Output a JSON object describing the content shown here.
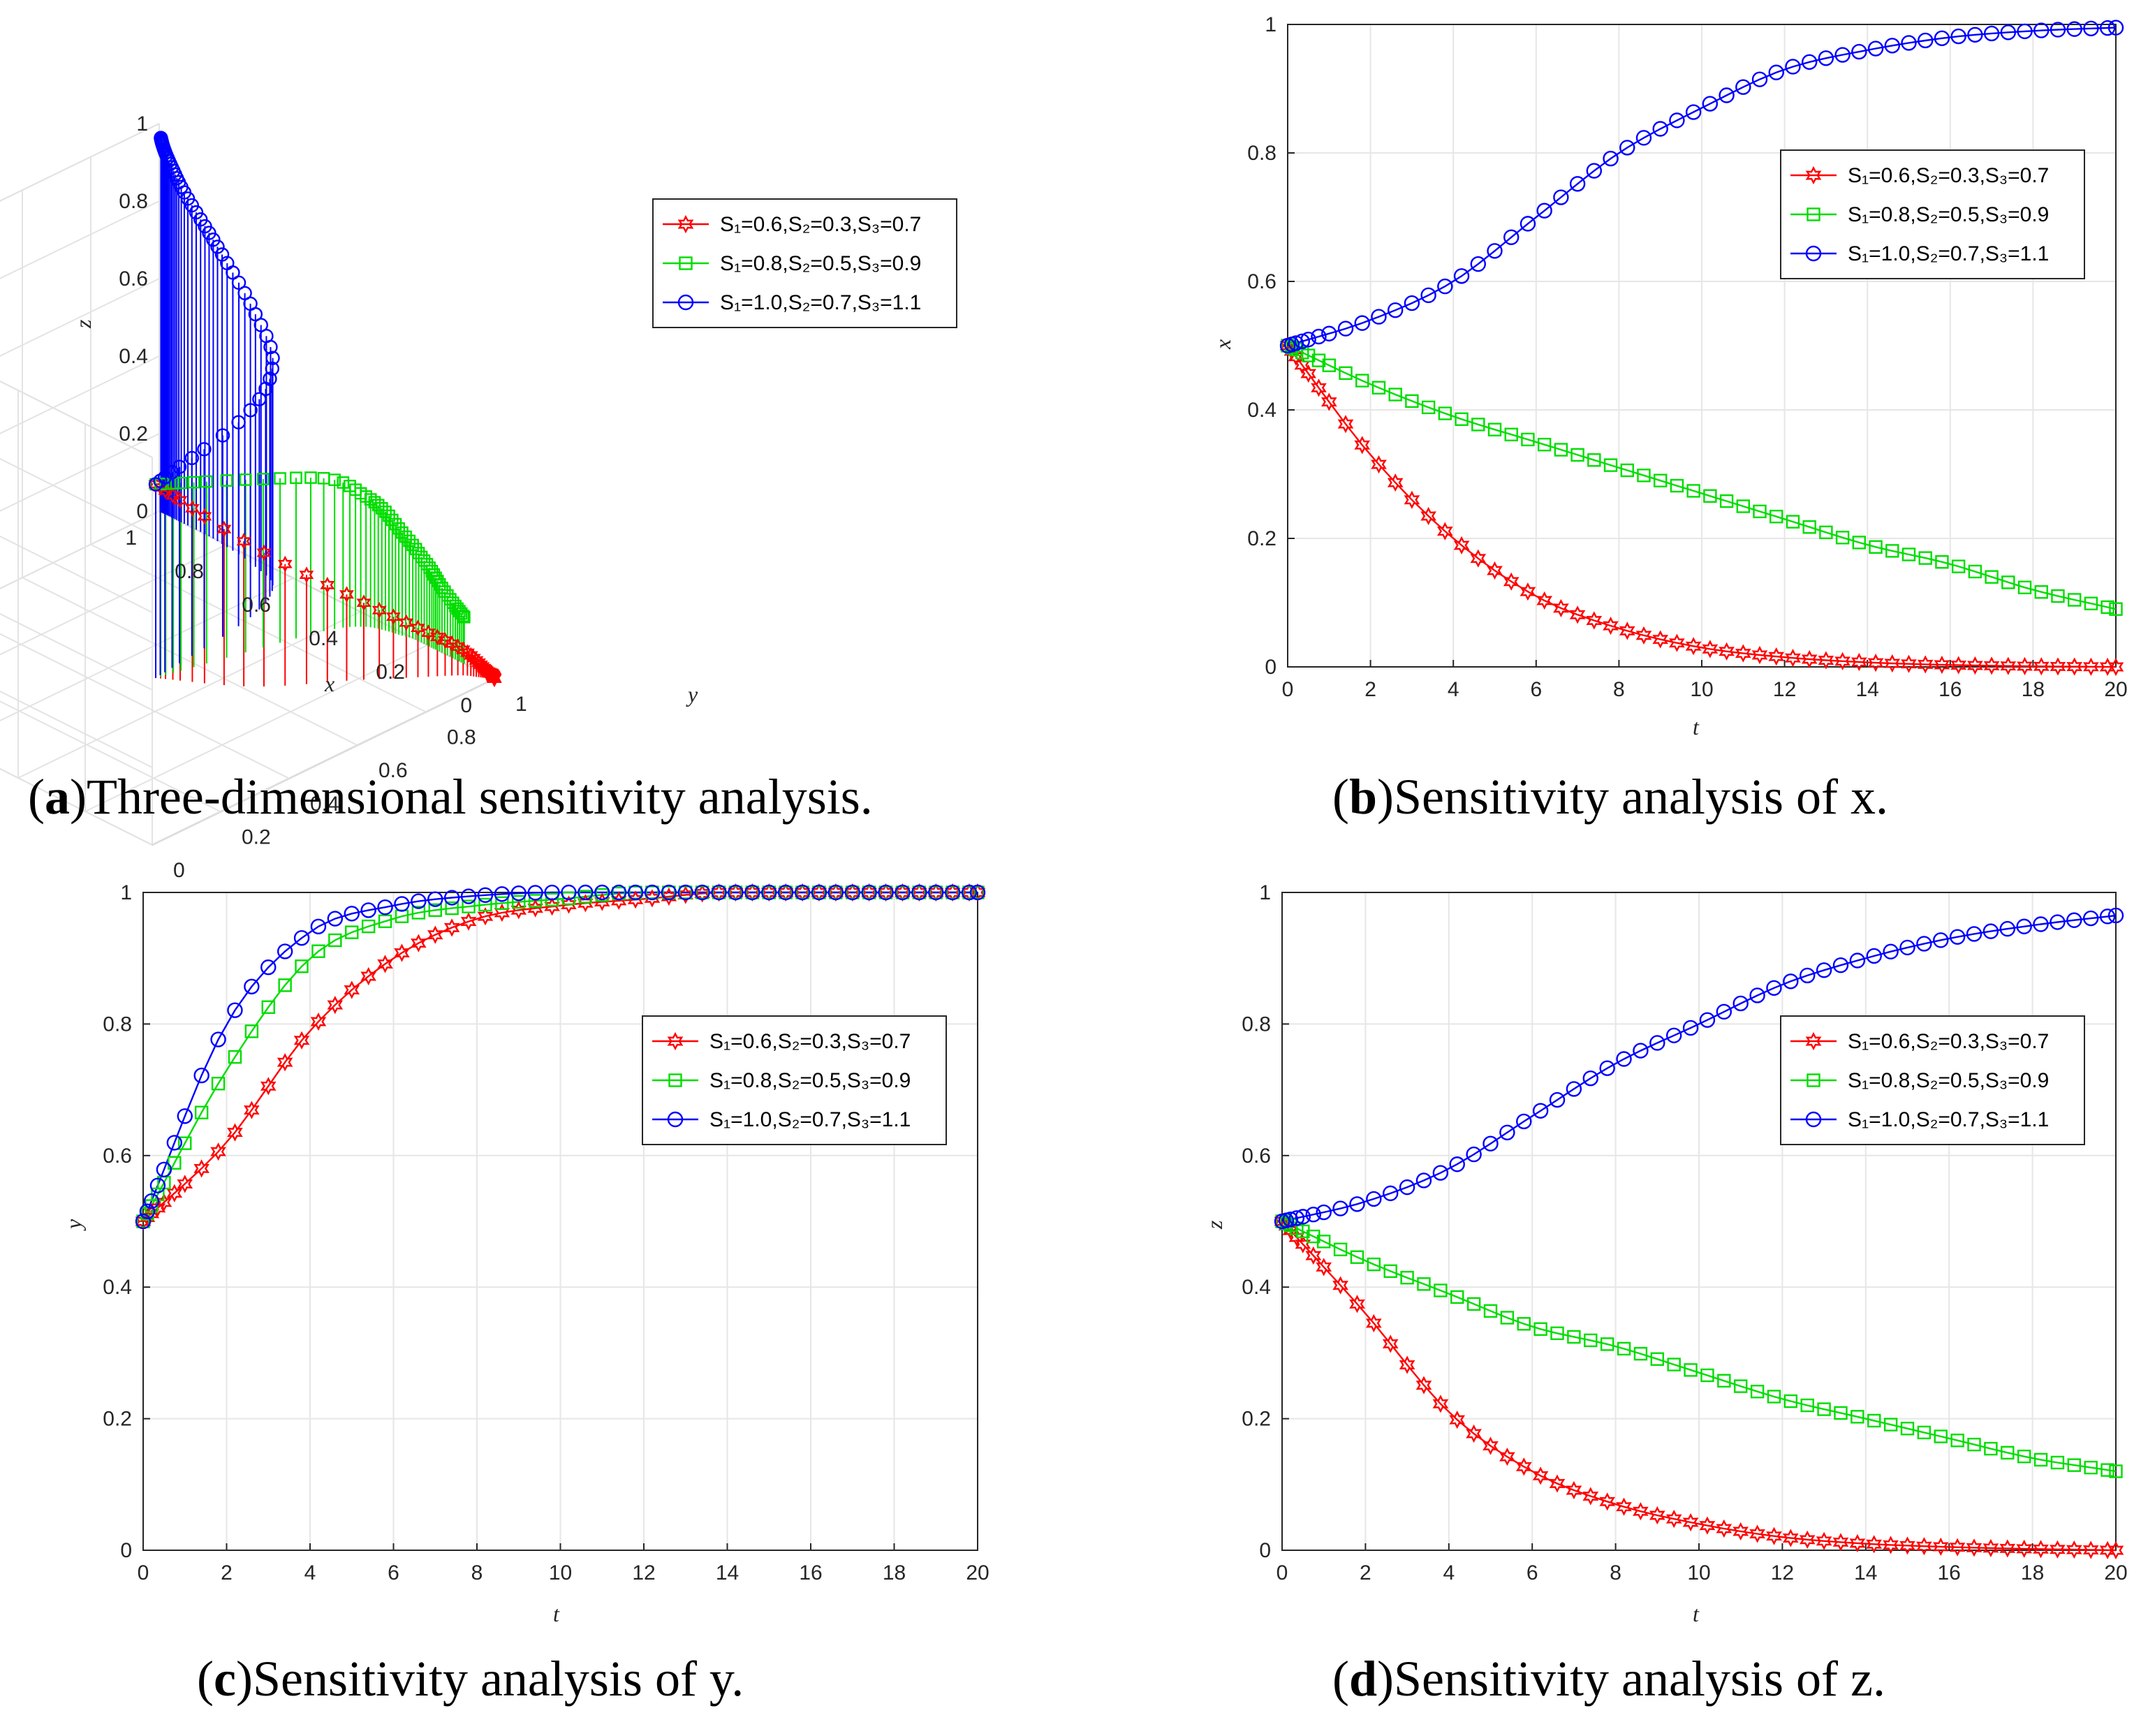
{
  "legend": [
    {
      "key": "s1",
      "label": "S₁=0.6,S₂=0.3,S₃=0.7",
      "color": "#ff0000",
      "marker": "hexagram"
    },
    {
      "key": "s2",
      "label": "S₁=0.8,S₂=0.5,S₃=0.9",
      "color": "#00dd00",
      "marker": "square"
    },
    {
      "key": "s3",
      "label": "S₁=1.0,S₂=0.7,S₃=1.1",
      "color": "#0000ff",
      "marker": "circle"
    }
  ],
  "chart_data": [
    {
      "id": "a",
      "type": "stem3",
      "caption_letter": "a",
      "caption_text": "Three-dimensional sensitivity analysis.",
      "xlabel": "x",
      "ylabel": "y",
      "zlabel": "z",
      "xlim": [
        0,
        1
      ],
      "ylim": [
        0,
        1
      ],
      "zlim": [
        0,
        1
      ],
      "x_ticks": [
        "0",
        "0.2",
        "0.4",
        "0.6",
        "0.8",
        "1"
      ],
      "y_ticks": [
        "0",
        "0.2",
        "0.4",
        "0.6",
        "0.8",
        "1"
      ],
      "z_ticks": [
        "0",
        "0.2",
        "0.4",
        "0.6",
        "0.8",
        "1"
      ],
      "trajectory_source": "x(t), y(t), z(t) from panels b, c, d, t = 0 to 20"
    },
    {
      "id": "b",
      "type": "line",
      "caption_letter": "b",
      "caption_text": "Sensitivity analysis of x.",
      "xlabel": "t",
      "ylabel": "x",
      "xlim": [
        0,
        20
      ],
      "ylim": [
        0,
        1
      ],
      "x_ticks": [
        "0",
        "2",
        "4",
        "6",
        "8",
        "10",
        "12",
        "14",
        "16",
        "18",
        "20"
      ],
      "y_ticks": [
        "0",
        "0.2",
        "0.4",
        "0.6",
        "0.8",
        "1"
      ],
      "legend_position": "upper-right",
      "x": [
        0,
        2,
        4,
        6,
        8,
        10,
        12,
        14,
        16,
        18,
        20
      ],
      "series": [
        {
          "name": "S₁=0.6,S₂=0.3,S₃=0.7",
          "values": [
            0.5,
            0.33,
            0.2,
            0.11,
            0.06,
            0.03,
            0.015,
            0.007,
            0.003,
            0.001,
            0.0
          ]
        },
        {
          "name": "S₁=0.8,S₂=0.5,S₃=0.9",
          "values": [
            0.5,
            0.44,
            0.39,
            0.35,
            0.31,
            0.27,
            0.23,
            0.19,
            0.16,
            0.12,
            0.09
          ]
        },
        {
          "name": "S₁=1.0,S₂=0.7,S₃=1.1",
          "values": [
            0.5,
            0.54,
            0.6,
            0.7,
            0.8,
            0.87,
            0.93,
            0.96,
            0.98,
            0.99,
            0.995
          ]
        }
      ]
    },
    {
      "id": "c",
      "type": "line",
      "caption_letter": "c",
      "caption_text": "Sensitivity analysis of y.",
      "xlabel": "t",
      "ylabel": "y",
      "xlim": [
        0,
        20
      ],
      "ylim": [
        0,
        1
      ],
      "x_ticks": [
        "0",
        "2",
        "4",
        "6",
        "8",
        "10",
        "12",
        "14",
        "16",
        "18",
        "20"
      ],
      "y_ticks": [
        "0",
        "0.2",
        "0.4",
        "0.6",
        "0.8",
        "1"
      ],
      "legend_position": "right",
      "x": [
        0,
        2,
        4,
        6,
        8,
        10,
        12,
        14,
        16,
        18,
        20
      ],
      "series": [
        {
          "name": "S₁=0.6,S₂=0.3,S₃=0.7",
          "values": [
            0.5,
            0.62,
            0.79,
            0.9,
            0.96,
            0.98,
            0.99,
            1.0,
            1.0,
            1.0,
            1.0
          ]
        },
        {
          "name": "S₁=0.8,S₂=0.5,S₃=0.9",
          "values": [
            0.5,
            0.73,
            0.9,
            0.96,
            0.98,
            0.99,
            1.0,
            1.0,
            1.0,
            1.0,
            1.0
          ]
        },
        {
          "name": "S₁=1.0,S₂=0.7,S₃=1.1",
          "values": [
            0.5,
            0.8,
            0.94,
            0.98,
            0.995,
            1.0,
            1.0,
            1.0,
            1.0,
            1.0,
            1.0
          ]
        }
      ]
    },
    {
      "id": "d",
      "type": "line",
      "caption_letter": "d",
      "caption_text": "Sensitivity analysis of z.",
      "xlabel": "t",
      "ylabel": "z",
      "xlim": [
        0,
        20
      ],
      "ylim": [
        0,
        1
      ],
      "x_ticks": [
        "0",
        "2",
        "4",
        "6",
        "8",
        "10",
        "12",
        "14",
        "16",
        "18",
        "20"
      ],
      "y_ticks": [
        "0",
        "0.2",
        "0.4",
        "0.6",
        "0.8",
        "1"
      ],
      "legend_position": "upper-right",
      "x": [
        0,
        2,
        4,
        6,
        8,
        10,
        12,
        14,
        16,
        18,
        20
      ],
      "series": [
        {
          "name": "S₁=0.6,S₂=0.3,S₃=0.7",
          "values": [
            0.5,
            0.36,
            0.21,
            0.12,
            0.07,
            0.04,
            0.02,
            0.01,
            0.005,
            0.002,
            0.0
          ]
        },
        {
          "name": "S₁=0.8,S₂=0.5,S₃=0.9",
          "values": [
            0.5,
            0.44,
            0.39,
            0.34,
            0.31,
            0.27,
            0.23,
            0.2,
            0.17,
            0.14,
            0.12
          ]
        },
        {
          "name": "S₁=1.0,S₂=0.7,S₃=1.1",
          "values": [
            0.5,
            0.53,
            0.58,
            0.66,
            0.74,
            0.8,
            0.86,
            0.9,
            0.93,
            0.95,
            0.965
          ]
        }
      ]
    }
  ]
}
